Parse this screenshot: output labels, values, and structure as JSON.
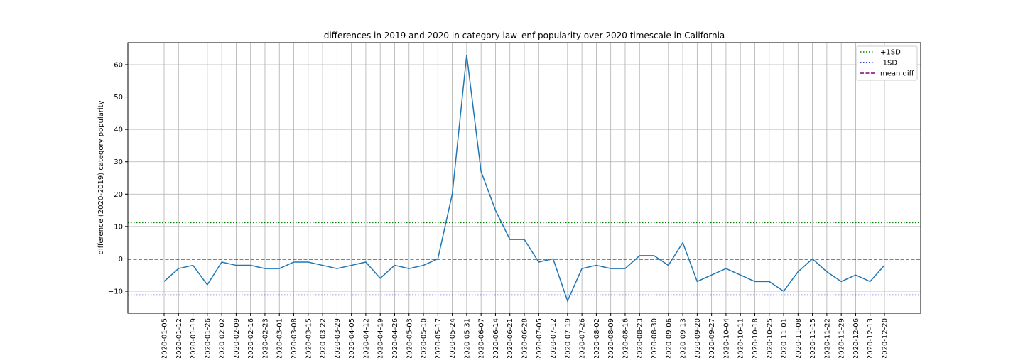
{
  "chart_data": {
    "type": "line",
    "title": "differences in 2019 and 2020 in category law_enf popularity over 2020 timescale in California",
    "xlabel": "",
    "ylabel": "difference (2020-2019) category popularity",
    "ylim": [
      -16.8,
      66.8
    ],
    "yticks": [
      -10,
      0,
      10,
      20,
      30,
      40,
      50,
      60
    ],
    "ytick_labels": [
      "−10",
      "0",
      "10",
      "20",
      "30",
      "40",
      "50",
      "60"
    ],
    "grid": true,
    "legend_position": "top-right",
    "categories": [
      "2020-01-05",
      "2020-01-12",
      "2020-01-19",
      "2020-01-26",
      "2020-02-02",
      "2020-02-09",
      "2020-02-16",
      "2020-02-23",
      "2020-03-01",
      "2020-03-08",
      "2020-03-15",
      "2020-03-22",
      "2020-03-29",
      "2020-04-05",
      "2020-04-12",
      "2020-04-19",
      "2020-04-26",
      "2020-05-03",
      "2020-05-10",
      "2020-05-17",
      "2020-05-24",
      "2020-05-31",
      "2020-06-07",
      "2020-06-14",
      "2020-06-21",
      "2020-06-28",
      "2020-07-05",
      "2020-07-12",
      "2020-07-19",
      "2020-07-26",
      "2020-08-02",
      "2020-08-09",
      "2020-08-16",
      "2020-08-23",
      "2020-08-30",
      "2020-09-06",
      "2020-09-13",
      "2020-09-20",
      "2020-09-27",
      "2020-10-04",
      "2020-10-11",
      "2020-10-18",
      "2020-10-25",
      "2020-11-01",
      "2020-11-08",
      "2020-11-15",
      "2020-11-22",
      "2020-11-29",
      "2020-12-06",
      "2020-12-13",
      "2020-12-20"
    ],
    "series": [
      {
        "values": [
          -7,
          -3,
          -2,
          -8,
          -1,
          -2,
          -2,
          -3,
          -3,
          -1,
          -1,
          -2,
          -3,
          -2,
          -1,
          -6,
          -2,
          -3,
          -2,
          0,
          20,
          63,
          27,
          15,
          6,
          6,
          -1,
          0,
          -13,
          -3,
          -2,
          -3,
          -3,
          1,
          1,
          -2,
          5,
          -7,
          -5,
          -3,
          -5,
          -7,
          -7,
          -10,
          -4,
          0,
          -4,
          -7,
          -5,
          -7,
          -2
        ],
        "color": "#1f77b4"
      }
    ],
    "reference_lines": [
      {
        "name": "+1SD",
        "y": 11.2,
        "color": "#008000",
        "style": "dotted"
      },
      {
        "name": "-1SD",
        "y": -11.2,
        "color": "#0000cc",
        "style": "dotted"
      },
      {
        "name": "mean diff",
        "y": -0.1,
        "color": "#800080",
        "style": "dashed"
      }
    ]
  }
}
